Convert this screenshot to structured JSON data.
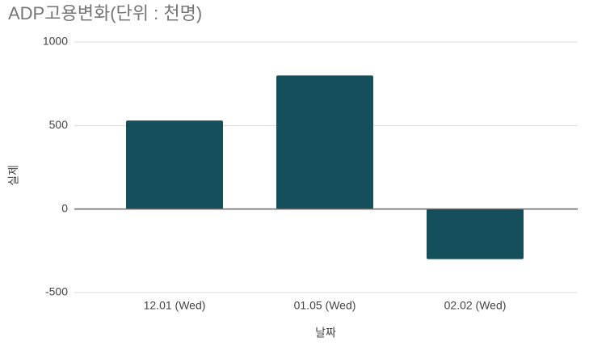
{
  "chart_data": {
    "type": "bar",
    "title": "ADP고용변화(단위 : 천명)",
    "x_label": "날짜",
    "y_label": "실제",
    "categories": [
      "12.01 (Wed)",
      "01.05 (Wed)",
      "02.02 (Wed)"
    ],
    "values": [
      530,
      800,
      -300
    ],
    "color": "#164f5c",
    "ylim": [
      -500,
      1000
    ],
    "yticks": [
      -500,
      0,
      500,
      1000
    ],
    "grid": true
  }
}
